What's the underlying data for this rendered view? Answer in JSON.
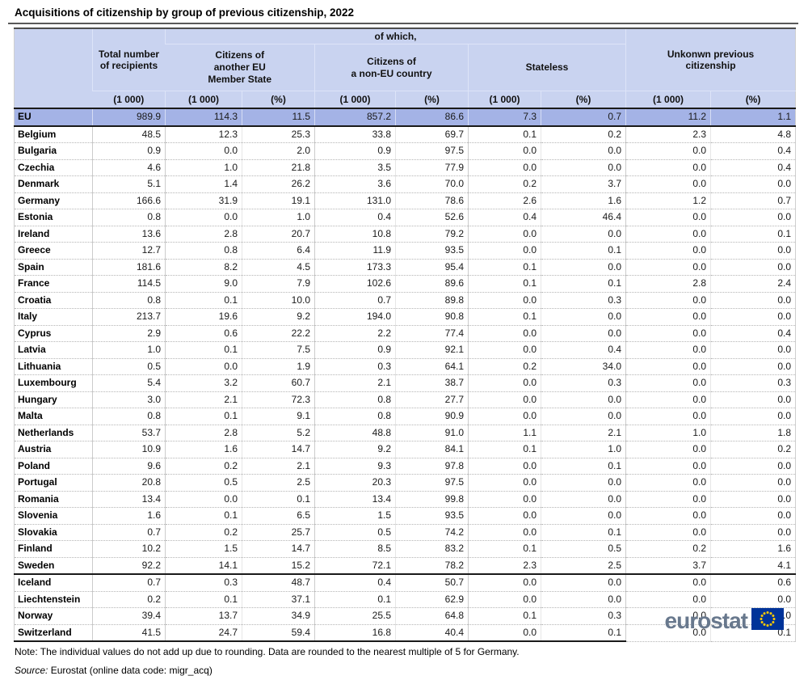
{
  "title": "Acquisitions of citizenship by group of previous citizenship, 2022",
  "colors": {
    "header_bg": "#c9d3f0",
    "eu_row_bg": "#a4b3e6",
    "logo_text": "#68788d",
    "flag_blue": "#003399",
    "flag_stars": "#ffcc00"
  },
  "chart_data": {
    "type": "table",
    "header": {
      "of_which": "of which,",
      "total": "Total number\nof recipients",
      "eu_ms": "Citizens of\nanother EU\nMember State",
      "non_eu": "Citizens of\na non-EU country",
      "stateless": "Stateless",
      "unknown": "Unkonwn previous\ncitizenship"
    },
    "units": [
      "(1 000)",
      "(1 000)",
      "(%)",
      "(1 000)",
      "(%)",
      "(1 000)",
      "(%)",
      "(1 000)",
      "(%)"
    ],
    "rows": [
      {
        "name": "EU",
        "type": "eu",
        "values": [
          "989.9",
          "114.3",
          "11.5",
          "857.2",
          "86.6",
          "7.3",
          "0.7",
          "11.2",
          "1.1"
        ]
      },
      {
        "name": "Belgium",
        "values": [
          "48.5",
          "12.3",
          "25.3",
          "33.8",
          "69.7",
          "0.1",
          "0.2",
          "2.3",
          "4.8"
        ]
      },
      {
        "name": "Bulgaria",
        "values": [
          "0.9",
          "0.0",
          "2.0",
          "0.9",
          "97.5",
          "0.0",
          "0.0",
          "0.0",
          "0.4"
        ]
      },
      {
        "name": "Czechia",
        "values": [
          "4.6",
          "1.0",
          "21.8",
          "3.5",
          "77.9",
          "0.0",
          "0.0",
          "0.0",
          "0.4"
        ]
      },
      {
        "name": "Denmark",
        "values": [
          "5.1",
          "1.4",
          "26.2",
          "3.6",
          "70.0",
          "0.2",
          "3.7",
          "0.0",
          "0.0"
        ]
      },
      {
        "name": "Germany",
        "values": [
          "166.6",
          "31.9",
          "19.1",
          "131.0",
          "78.6",
          "2.6",
          "1.6",
          "1.2",
          "0.7"
        ]
      },
      {
        "name": "Estonia",
        "values": [
          "0.8",
          "0.0",
          "1.0",
          "0.4",
          "52.6",
          "0.4",
          "46.4",
          "0.0",
          "0.0"
        ]
      },
      {
        "name": "Ireland",
        "values": [
          "13.6",
          "2.8",
          "20.7",
          "10.8",
          "79.2",
          "0.0",
          "0.0",
          "0.0",
          "0.1"
        ]
      },
      {
        "name": "Greece",
        "values": [
          "12.7",
          "0.8",
          "6.4",
          "11.9",
          "93.5",
          "0.0",
          "0.1",
          "0.0",
          "0.0"
        ]
      },
      {
        "name": "Spain",
        "values": [
          "181.6",
          "8.2",
          "4.5",
          "173.3",
          "95.4",
          "0.1",
          "0.0",
          "0.0",
          "0.0"
        ]
      },
      {
        "name": "France",
        "values": [
          "114.5",
          "9.0",
          "7.9",
          "102.6",
          "89.6",
          "0.1",
          "0.1",
          "2.8",
          "2.4"
        ]
      },
      {
        "name": "Croatia",
        "values": [
          "0.8",
          "0.1",
          "10.0",
          "0.7",
          "89.8",
          "0.0",
          "0.3",
          "0.0",
          "0.0"
        ]
      },
      {
        "name": "Italy",
        "values": [
          "213.7",
          "19.6",
          "9.2",
          "194.0",
          "90.8",
          "0.1",
          "0.0",
          "0.0",
          "0.0"
        ]
      },
      {
        "name": "Cyprus",
        "values": [
          "2.9",
          "0.6",
          "22.2",
          "2.2",
          "77.4",
          "0.0",
          "0.0",
          "0.0",
          "0.4"
        ]
      },
      {
        "name": "Latvia",
        "values": [
          "1.0",
          "0.1",
          "7.5",
          "0.9",
          "92.1",
          "0.0",
          "0.4",
          "0.0",
          "0.0"
        ]
      },
      {
        "name": "Lithuania",
        "values": [
          "0.5",
          "0.0",
          "1.9",
          "0.3",
          "64.1",
          "0.2",
          "34.0",
          "0.0",
          "0.0"
        ]
      },
      {
        "name": "Luxembourg",
        "values": [
          "5.4",
          "3.2",
          "60.7",
          "2.1",
          "38.7",
          "0.0",
          "0.3",
          "0.0",
          "0.3"
        ]
      },
      {
        "name": "Hungary",
        "values": [
          "3.0",
          "2.1",
          "72.3",
          "0.8",
          "27.7",
          "0.0",
          "0.0",
          "0.0",
          "0.0"
        ]
      },
      {
        "name": "Malta",
        "values": [
          "0.8",
          "0.1",
          "9.1",
          "0.8",
          "90.9",
          "0.0",
          "0.0",
          "0.0",
          "0.0"
        ]
      },
      {
        "name": "Netherlands",
        "values": [
          "53.7",
          "2.8",
          "5.2",
          "48.8",
          "91.0",
          "1.1",
          "2.1",
          "1.0",
          "1.8"
        ]
      },
      {
        "name": "Austria",
        "values": [
          "10.9",
          "1.6",
          "14.7",
          "9.2",
          "84.1",
          "0.1",
          "1.0",
          "0.0",
          "0.2"
        ]
      },
      {
        "name": "Poland",
        "values": [
          "9.6",
          "0.2",
          "2.1",
          "9.3",
          "97.8",
          "0.0",
          "0.1",
          "0.0",
          "0.0"
        ]
      },
      {
        "name": "Portugal",
        "values": [
          "20.8",
          "0.5",
          "2.5",
          "20.3",
          "97.5",
          "0.0",
          "0.0",
          "0.0",
          "0.0"
        ]
      },
      {
        "name": "Romania",
        "values": [
          "13.4",
          "0.0",
          "0.1",
          "13.4",
          "99.8",
          "0.0",
          "0.0",
          "0.0",
          "0.0"
        ]
      },
      {
        "name": "Slovenia",
        "values": [
          "1.6",
          "0.1",
          "6.5",
          "1.5",
          "93.5",
          "0.0",
          "0.0",
          "0.0",
          "0.0"
        ]
      },
      {
        "name": "Slovakia",
        "values": [
          "0.7",
          "0.2",
          "25.7",
          "0.5",
          "74.2",
          "0.0",
          "0.1",
          "0.0",
          "0.0"
        ]
      },
      {
        "name": "Finland",
        "values": [
          "10.2",
          "1.5",
          "14.7",
          "8.5",
          "83.2",
          "0.1",
          "0.5",
          "0.2",
          "1.6"
        ]
      },
      {
        "name": "Sweden",
        "group_end": true,
        "values": [
          "92.2",
          "14.1",
          "15.2",
          "72.1",
          "78.2",
          "2.3",
          "2.5",
          "3.7",
          "4.1"
        ]
      },
      {
        "name": "Iceland",
        "values": [
          "0.7",
          "0.3",
          "48.7",
          "0.4",
          "50.7",
          "0.0",
          "0.0",
          "0.0",
          "0.6"
        ]
      },
      {
        "name": "Liechtenstein",
        "values": [
          "0.2",
          "0.1",
          "37.1",
          "0.1",
          "62.9",
          "0.0",
          "0.0",
          "0.0",
          "0.0"
        ]
      },
      {
        "name": "Norway",
        "values": [
          "39.4",
          "13.7",
          "34.9",
          "25.5",
          "64.8",
          "0.1",
          "0.3",
          "0.0",
          "0.0"
        ]
      },
      {
        "name": "Switzerland",
        "values": [
          "41.5",
          "24.7",
          "59.4",
          "16.8",
          "40.4",
          "0.0",
          "0.1",
          "0.0",
          "0.1"
        ]
      }
    ]
  },
  "note": "Note: The individual values do not add up due to rounding. Data are rounded to the nearest multiple of 5 for Germany.",
  "source": {
    "label": "Source:",
    "text": "Eurostat (online data code: migr_acq)"
  },
  "logo": {
    "text": "eurostat",
    "flag_icon": "eu-flag-icon"
  }
}
